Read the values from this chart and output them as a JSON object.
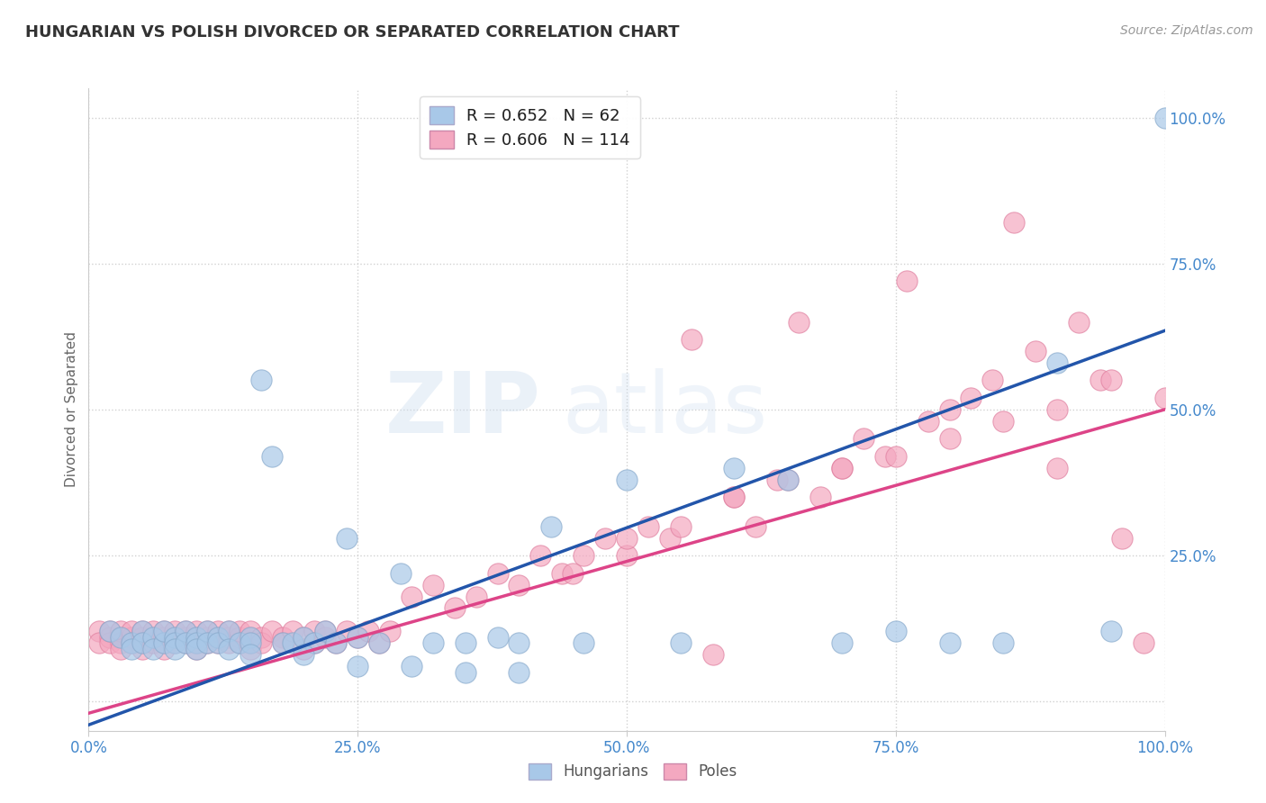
{
  "title": "HUNGARIAN VS POLISH DIVORCED OR SEPARATED CORRELATION CHART",
  "source_text": "Source: ZipAtlas.com",
  "ylabel": "Divorced or Separated",
  "xlim": [
    0.0,
    1.0
  ],
  "ylim": [
    -0.05,
    1.05
  ],
  "xticks": [
    0.0,
    0.25,
    0.5,
    0.75,
    1.0
  ],
  "yticks": [
    0.0,
    0.25,
    0.5,
    0.75,
    1.0
  ],
  "xticklabels": [
    "0.0%",
    "25.0%",
    "50.0%",
    "75.0%",
    "100.0%"
  ],
  "yticklabels": [
    "",
    "25.0%",
    "50.0%",
    "75.0%",
    "100.0%"
  ],
  "blue_color": "#a8c8e8",
  "pink_color": "#f4a8c0",
  "blue_edge_color": "#88aacc",
  "pink_edge_color": "#e080a0",
  "blue_line_color": "#2255aa",
  "pink_line_color": "#dd4488",
  "R_blue": 0.652,
  "N_blue": 62,
  "R_pink": 0.606,
  "N_pink": 114,
  "watermark": "ZIPatlas",
  "blue_slope": 0.675,
  "blue_intercept": -0.04,
  "pink_slope": 0.52,
  "pink_intercept": -0.02,
  "blue_x": [
    0.02,
    0.03,
    0.04,
    0.04,
    0.05,
    0.05,
    0.06,
    0.06,
    0.07,
    0.07,
    0.08,
    0.08,
    0.08,
    0.09,
    0.09,
    0.1,
    0.1,
    0.1,
    0.11,
    0.11,
    0.12,
    0.12,
    0.13,
    0.13,
    0.14,
    0.15,
    0.15,
    0.16,
    0.17,
    0.18,
    0.19,
    0.2,
    0.21,
    0.22,
    0.23,
    0.24,
    0.25,
    0.27,
    0.29,
    0.32,
    0.35,
    0.38,
    0.4,
    0.43,
    0.46,
    0.5,
    0.55,
    0.6,
    0.65,
    0.7,
    0.75,
    0.8,
    0.85,
    0.9,
    0.95,
    1.0,
    0.15,
    0.2,
    0.25,
    0.3,
    0.35,
    0.4
  ],
  "blue_y": [
    0.12,
    0.11,
    0.1,
    0.09,
    0.12,
    0.1,
    0.11,
    0.09,
    0.1,
    0.12,
    0.11,
    0.1,
    0.09,
    0.12,
    0.1,
    0.11,
    0.1,
    0.09,
    0.12,
    0.1,
    0.11,
    0.1,
    0.12,
    0.09,
    0.1,
    0.11,
    0.1,
    0.55,
    0.42,
    0.1,
    0.1,
    0.11,
    0.1,
    0.12,
    0.1,
    0.28,
    0.11,
    0.1,
    0.22,
    0.1,
    0.1,
    0.11,
    0.1,
    0.3,
    0.1,
    0.38,
    0.1,
    0.4,
    0.38,
    0.1,
    0.12,
    0.1,
    0.1,
    0.58,
    0.12,
    1.0,
    0.08,
    0.08,
    0.06,
    0.06,
    0.05,
    0.05
  ],
  "pink_x": [
    0.01,
    0.01,
    0.02,
    0.02,
    0.02,
    0.03,
    0.03,
    0.03,
    0.03,
    0.04,
    0.04,
    0.04,
    0.05,
    0.05,
    0.05,
    0.05,
    0.06,
    0.06,
    0.06,
    0.07,
    0.07,
    0.07,
    0.07,
    0.08,
    0.08,
    0.08,
    0.09,
    0.09,
    0.09,
    0.1,
    0.1,
    0.1,
    0.1,
    0.11,
    0.11,
    0.11,
    0.12,
    0.12,
    0.12,
    0.13,
    0.13,
    0.13,
    0.14,
    0.14,
    0.14,
    0.15,
    0.15,
    0.15,
    0.15,
    0.16,
    0.16,
    0.17,
    0.18,
    0.18,
    0.19,
    0.2,
    0.2,
    0.21,
    0.21,
    0.22,
    0.22,
    0.23,
    0.24,
    0.25,
    0.26,
    0.27,
    0.28,
    0.3,
    0.32,
    0.34,
    0.36,
    0.38,
    0.4,
    0.42,
    0.44,
    0.46,
    0.48,
    0.5,
    0.52,
    0.54,
    0.56,
    0.58,
    0.6,
    0.62,
    0.64,
    0.66,
    0.68,
    0.7,
    0.72,
    0.74,
    0.76,
    0.78,
    0.8,
    0.82,
    0.84,
    0.86,
    0.88,
    0.9,
    0.92,
    0.94,
    0.96,
    0.98,
    1.0,
    0.45,
    0.5,
    0.55,
    0.6,
    0.65,
    0.7,
    0.75,
    0.8,
    0.85,
    0.9,
    0.95
  ],
  "pink_y": [
    0.12,
    0.1,
    0.11,
    0.1,
    0.12,
    0.11,
    0.1,
    0.12,
    0.09,
    0.11,
    0.1,
    0.12,
    0.11,
    0.1,
    0.12,
    0.09,
    0.11,
    0.1,
    0.12,
    0.11,
    0.1,
    0.12,
    0.09,
    0.11,
    0.1,
    0.12,
    0.11,
    0.1,
    0.12,
    0.11,
    0.1,
    0.12,
    0.09,
    0.11,
    0.1,
    0.12,
    0.11,
    0.1,
    0.12,
    0.11,
    0.1,
    0.12,
    0.11,
    0.1,
    0.12,
    0.11,
    0.1,
    0.12,
    0.09,
    0.11,
    0.1,
    0.12,
    0.11,
    0.1,
    0.12,
    0.11,
    0.09,
    0.12,
    0.1,
    0.11,
    0.12,
    0.1,
    0.12,
    0.11,
    0.12,
    0.1,
    0.12,
    0.18,
    0.2,
    0.16,
    0.18,
    0.22,
    0.2,
    0.25,
    0.22,
    0.25,
    0.28,
    0.25,
    0.3,
    0.28,
    0.62,
    0.08,
    0.35,
    0.3,
    0.38,
    0.65,
    0.35,
    0.4,
    0.45,
    0.42,
    0.72,
    0.48,
    0.5,
    0.52,
    0.55,
    0.82,
    0.6,
    0.4,
    0.65,
    0.55,
    0.28,
    0.1,
    0.52,
    0.22,
    0.28,
    0.3,
    0.35,
    0.38,
    0.4,
    0.42,
    0.45,
    0.48,
    0.5,
    0.55
  ]
}
